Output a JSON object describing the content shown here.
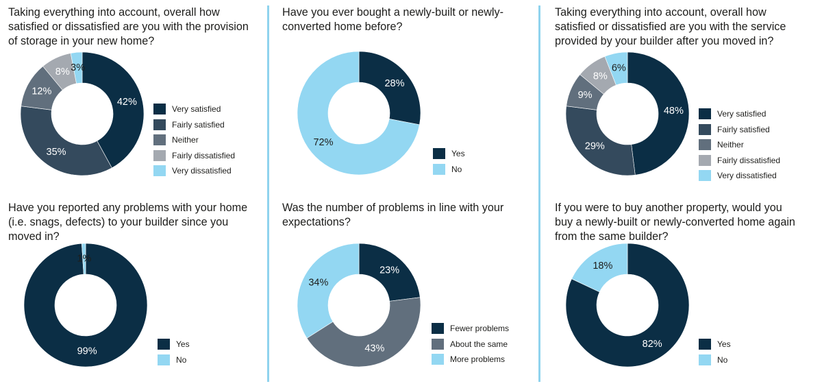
{
  "colors": {
    "very_satisfied": "#0b2e45",
    "fairly_satisfied": "#344a5d",
    "neither": "#616f7d",
    "fairly_dissatisfied": "#a4a9b0",
    "very_dissatisfied": "#93d7f2",
    "label_dark": "#ffffff",
    "label_light": "#1d1d1b"
  },
  "chart_data": [
    {
      "type": "pie",
      "title": "Taking everything into account, overall how satisfied or dissatisfied are you with the provision of storage in your new home?",
      "slices": [
        {
          "label": "Very satisfied",
          "value": 42,
          "display": "42%",
          "color_key": "very_satisfied"
        },
        {
          "label": "Fairly satisfied",
          "value": 35,
          "display": "35%",
          "color_key": "fairly_satisfied"
        },
        {
          "label": "Neither",
          "value": 12,
          "display": "12%",
          "color_key": "neither"
        },
        {
          "label": "Fairly dissatisfied",
          "value": 8,
          "display": "8%",
          "color_key": "fairly_dissatisfied"
        },
        {
          "label": "Very dissatisfied",
          "value": 3,
          "display": "3%",
          "color_key": "very_dissatisfied"
        }
      ],
      "legend": [
        "Very satisfied",
        "Fairly satisfied",
        "Neither",
        "Fairly dissatisfied",
        "Very dissatisfied"
      ]
    },
    {
      "type": "pie",
      "title": "Have you ever bought a newly-built or newly-converted home before?",
      "slices": [
        {
          "label": "Yes",
          "value": 28,
          "display": "28%",
          "color_key": "very_satisfied"
        },
        {
          "label": "No",
          "value": 72,
          "display": "72%",
          "color_key": "very_dissatisfied"
        }
      ],
      "legend": [
        "Yes",
        "No"
      ]
    },
    {
      "type": "pie",
      "title": "Taking everything into account, overall how satisfied or dissatisfied are you with the service provided by your builder after you moved in?",
      "slices": [
        {
          "label": "Very satisfied",
          "value": 48,
          "display": "48%",
          "color_key": "very_satisfied"
        },
        {
          "label": "Fairly satisfied",
          "value": 29,
          "display": "29%",
          "color_key": "fairly_satisfied"
        },
        {
          "label": "Neither",
          "value": 9,
          "display": "9%",
          "color_key": "neither"
        },
        {
          "label": "Fairly dissatisfied",
          "value": 8,
          "display": "8%",
          "color_key": "fairly_dissatisfied"
        },
        {
          "label": "Very dissatisfied",
          "value": 6,
          "display": "6%",
          "color_key": "very_dissatisfied"
        }
      ],
      "legend": [
        "Very satisfied",
        "Fairly satisfied",
        "Neither",
        "Fairly dissatisfied",
        "Very dissatisfied"
      ]
    },
    {
      "type": "pie",
      "title": "Have you reported any problems with your home (i.e. snags, defects) to your builder since you moved in?",
      "slices": [
        {
          "label": "Yes",
          "value": 99,
          "display": "99%",
          "color_key": "very_satisfied"
        },
        {
          "label": "No",
          "value": 1,
          "display": "1%",
          "color_key": "very_dissatisfied"
        }
      ],
      "legend": [
        "Yes",
        "No"
      ]
    },
    {
      "type": "pie",
      "title": "Was the number of problems in line with your expectations?",
      "slices": [
        {
          "label": "Fewer problems",
          "value": 23,
          "display": "23%",
          "color_key": "very_satisfied"
        },
        {
          "label": "About the same",
          "value": 43,
          "display": "43%",
          "color_key": "neither"
        },
        {
          "label": "More problems",
          "value": 34,
          "display": "34%",
          "color_key": "very_dissatisfied"
        }
      ],
      "legend": [
        "Fewer problems",
        "About the same",
        "More problems"
      ]
    },
    {
      "type": "pie",
      "title": "If you were to buy another property, would you buy a newly-built or newly-converted home again from the same builder?",
      "slices": [
        {
          "label": "Yes",
          "value": 82,
          "display": "82%",
          "color_key": "very_satisfied"
        },
        {
          "label": "No",
          "value": 18,
          "display": "18%",
          "color_key": "very_dissatisfied"
        }
      ],
      "legend": [
        "Yes",
        "No"
      ]
    }
  ]
}
